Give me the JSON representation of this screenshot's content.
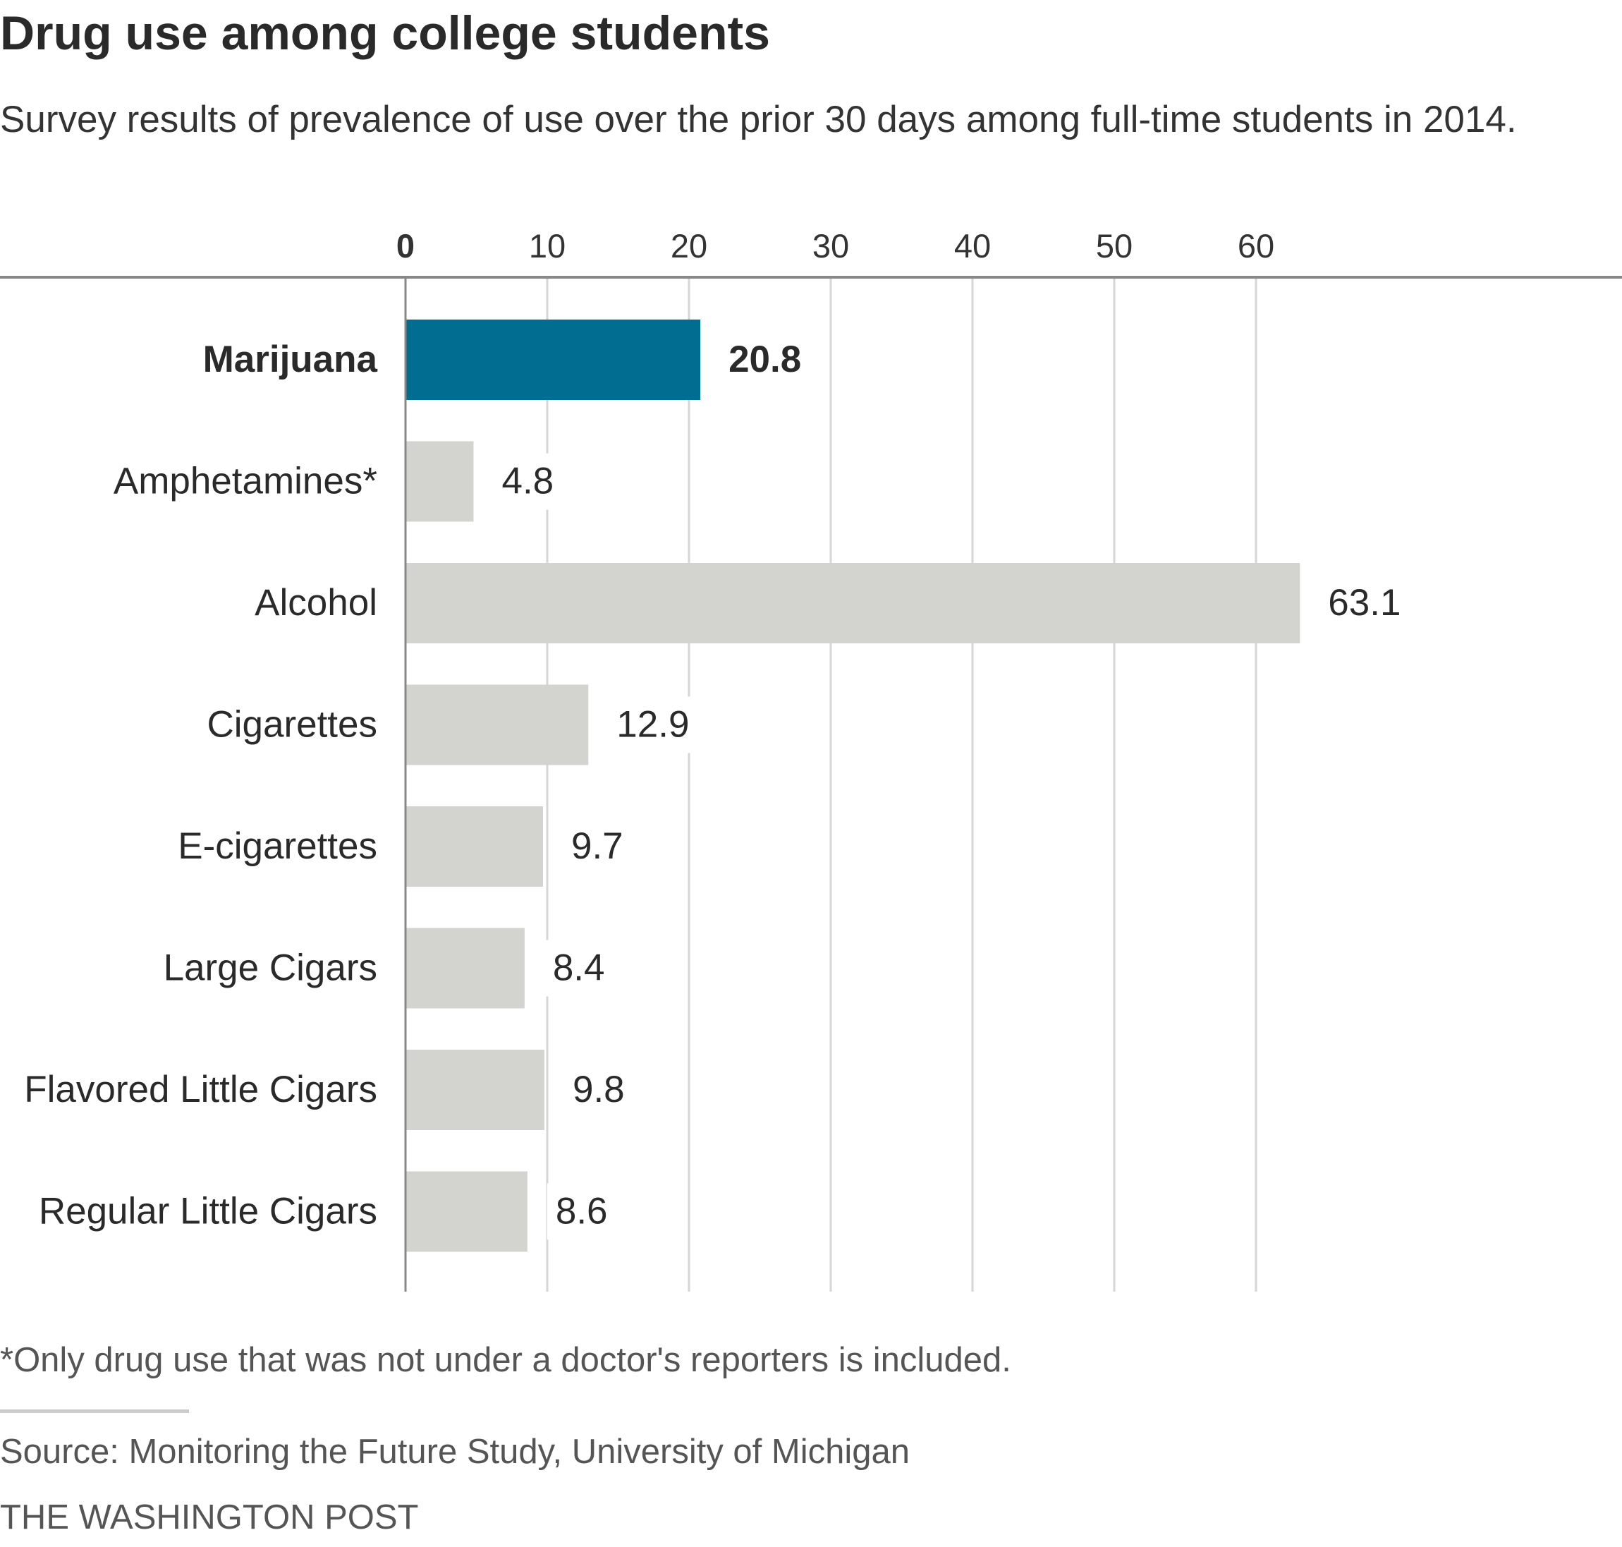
{
  "chart_data": {
    "type": "bar",
    "orientation": "horizontal",
    "title": "Drug use among college students",
    "subtitle": "Survey results of prevalence of use over the prior 30 days among full-time students in 2014.",
    "categories": [
      "Marijuana",
      "Amphetamines*",
      "Alcohol",
      "Cigarettes",
      "E-cigarettes",
      "Large Cigars",
      "Flavored Little Cigars",
      "Regular Little Cigars"
    ],
    "values": [
      20.8,
      4.8,
      63.1,
      12.9,
      9.7,
      8.4,
      9.8,
      8.6
    ],
    "value_labels": [
      "20.8",
      "4.8",
      "63.1",
      "12.9",
      "9.7",
      "8.4",
      "9.8",
      "8.6"
    ],
    "highlight": "Marijuana",
    "xticks": [
      0,
      10,
      20,
      30,
      40,
      50,
      60
    ],
    "xtick_labels": [
      "0",
      "10",
      "20",
      "30",
      "40",
      "50",
      "60"
    ],
    "xlim": [
      0,
      66
    ],
    "grid": true,
    "axis_position": "top",
    "colors": {
      "highlight": "#006d91",
      "bar": "#d3d3cf",
      "grid": "#d6d6d6",
      "axis": "#888888"
    }
  },
  "footnote": "*Only drug use that was not under a doctor's reporters is included.",
  "source": "Source: Monitoring the Future Study, University of Michigan",
  "credit": "THE WASHINGTON POST"
}
